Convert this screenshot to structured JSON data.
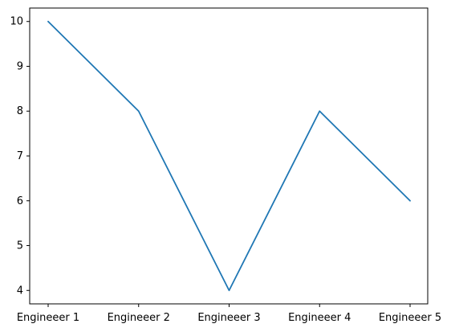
{
  "chart_data": {
    "type": "line",
    "title": "",
    "xlabel": "",
    "ylabel": "",
    "categories": [
      "Engineeer 1",
      "Engineeer 2",
      "Engineeer 3",
      "Engineeer 4",
      "Engineeer 5"
    ],
    "series": [
      {
        "values": [
          10,
          8,
          4,
          8,
          6
        ],
        "color": "#1f77b4"
      }
    ],
    "ylim": [
      3.7,
      10.3
    ],
    "yticks": [
      4,
      5,
      6,
      7,
      8,
      9,
      10
    ],
    "grid": false,
    "legend": "none"
  }
}
